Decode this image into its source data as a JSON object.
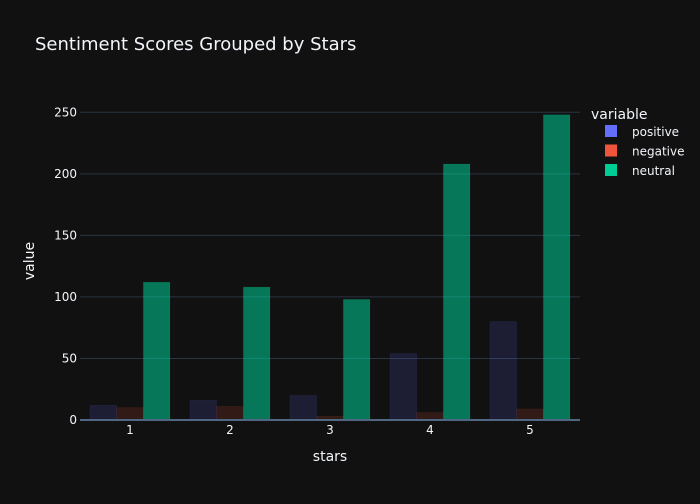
{
  "chart_data": {
    "type": "bar",
    "title": "Sentiment Scores Grouped by Stars",
    "xlabel": "stars",
    "ylabel": "value",
    "categories": [
      "1",
      "2",
      "3",
      "4",
      "5"
    ],
    "ylim": [
      0,
      260
    ],
    "yticks": [
      0,
      50,
      100,
      150,
      200,
      250
    ],
    "grid": true,
    "legend": {
      "title": "variable",
      "position": "top-right"
    },
    "series": [
      {
        "name": "positive",
        "color": "#636efa",
        "values": [
          12,
          16,
          20,
          54,
          80
        ]
      },
      {
        "name": "negative",
        "color": "#ef553b",
        "values": [
          10,
          11,
          3,
          6,
          9
        ]
      },
      {
        "name": "neutral",
        "color": "#00cc96",
        "values": [
          112,
          108,
          98,
          208,
          248
        ]
      }
    ]
  },
  "theme": {
    "background": "#111111",
    "grid_color": "#283442",
    "text_color": "#f2f5fa",
    "axis_line_color": "#506784"
  }
}
